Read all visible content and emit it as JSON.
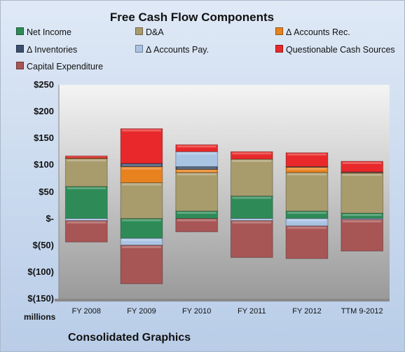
{
  "chart_data": {
    "type": "bar",
    "stacked": true,
    "title": "Free Cash Flow Components",
    "ylim": [
      -150,
      250
    ],
    "y_ticks": [
      250,
      200,
      150,
      100,
      50,
      0,
      -50,
      -100,
      -150
    ],
    "y_tick_labels": [
      "$250",
      "$200",
      "$150",
      "$100",
      "$50",
      "$-",
      "$(50)",
      "$(100)",
      "$(150)"
    ],
    "units_label": "millions",
    "categories": [
      "FY 2008",
      "FY 2009",
      "FY 2010",
      "FY 2011",
      "FY 2012",
      "TTM 9-2012"
    ],
    "legend_position": "top",
    "grid": false,
    "series": [
      {
        "name": "Net Income",
        "color": "#2e8b57",
        "values": [
          60,
          -37,
          14,
          42,
          14,
          10
        ]
      },
      {
        "name": "D&A",
        "color": "#a89b6c",
        "values": [
          52,
          67,
          72,
          69,
          72,
          75
        ]
      },
      {
        "name": "Δ Accounts Rec.",
        "color": "#e8821e",
        "values": [
          1,
          30,
          6,
          0,
          10,
          1
        ]
      },
      {
        "name": "Δ Inventories",
        "color": "#3b4f6e",
        "values": [
          0,
          6,
          5,
          0,
          1,
          1
        ]
      },
      {
        "name": "Δ Accounts Pay.",
        "color": "#a9c3e3",
        "values": [
          -4,
          -13,
          28,
          -4,
          -14,
          -2
        ]
      },
      {
        "name": "Questionable Cash Sources",
        "color": "#e8282a",
        "values": [
          4,
          65,
          13,
          14,
          26,
          20
        ]
      },
      {
        "name": "Capital Expenditure",
        "color": "#a85555",
        "values": [
          -40,
          -72,
          -25,
          -69,
          -61,
          -59
        ]
      }
    ],
    "caption": "Consolidated Graphics"
  }
}
